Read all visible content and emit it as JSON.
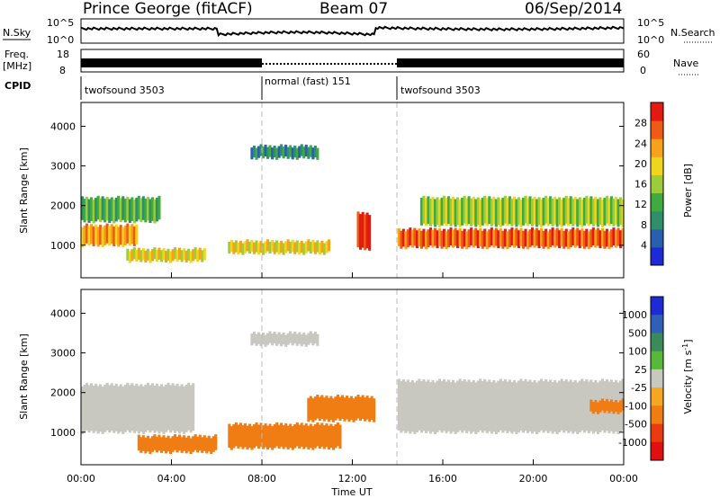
{
  "header": {
    "station": "Prince George (fitACF)",
    "beam": "Beam 07",
    "date": "06/Sep/2014"
  },
  "colors": {
    "power_scale": [
      "#1d2bd6",
      "#2a5fb0",
      "#2f8f6b",
      "#3faa3f",
      "#9ccc3a",
      "#f0d51e",
      "#f7a21b",
      "#ef5a14",
      "#e41a12"
    ],
    "velocity_scale": [
      "#1d2bd6",
      "#2f5fb6",
      "#3a8a5a",
      "#58b83a",
      "#c8c8c0",
      "#f5a623",
      "#f07d14",
      "#e83c10",
      "#e01010"
    ]
  },
  "top_panels": {
    "nsky_label": "N.Sky",
    "nsearch_label": "N.Search",
    "nsky_ticks": [
      "10^5",
      "10^0"
    ],
    "nsearch_ticks": [
      "10^5",
      "10^0"
    ],
    "freq_label": "Freq.",
    "freq_unit": "[MHz]",
    "freq_ticks": [
      "18",
      "8"
    ],
    "nave_label": "Nave",
    "nave_ticks": [
      "60",
      "0"
    ],
    "cpid_label": "CPID",
    "cpid_segments": [
      {
        "label": "twofsound 3503",
        "start_h": 0,
        "end_h": 8
      },
      {
        "label": "normal (fast) 151",
        "start_h": 8,
        "end_h": 14
      },
      {
        "label": "twofsound 3503",
        "start_h": 14,
        "end_h": 24
      }
    ]
  },
  "chart_data": [
    {
      "type": "heatmap",
      "title": "",
      "xlabel": "",
      "ylabel": "Slant Range [km]",
      "xlim": [
        0,
        24
      ],
      "ylim": [
        180,
        4600
      ],
      "yticks": [
        1000,
        2000,
        3000,
        4000
      ],
      "colorbar": {
        "label": "Power [dB]",
        "range": [
          0,
          32
        ],
        "ticks": [
          4,
          8,
          12,
          16,
          20,
          24,
          28
        ]
      },
      "echo_bands": [
        {
          "start_h": 0.0,
          "end_h": 2.5,
          "range_km": [
            1000,
            1500
          ],
          "power_db": 24
        },
        {
          "start_h": 0.0,
          "end_h": 3.5,
          "range_km": [
            1600,
            2200
          ],
          "power_db": 12
        },
        {
          "start_h": 2.0,
          "end_h": 5.5,
          "range_km": [
            600,
            900
          ],
          "power_db": 20
        },
        {
          "start_h": 6.5,
          "end_h": 11.0,
          "range_km": [
            800,
            1100
          ],
          "power_db": 18
        },
        {
          "start_h": 7.5,
          "end_h": 10.5,
          "range_km": [
            3200,
            3500
          ],
          "power_db": 6
        },
        {
          "start_h": 12.2,
          "end_h": 12.8,
          "range_km": [
            900,
            1800
          ],
          "power_db": 30
        },
        {
          "start_h": 14.0,
          "end_h": 24.0,
          "range_km": [
            950,
            1400
          ],
          "power_db": 26
        },
        {
          "start_h": 15.0,
          "end_h": 24.0,
          "range_km": [
            1500,
            2200
          ],
          "power_db": 14
        }
      ]
    },
    {
      "type": "heatmap",
      "title": "",
      "xlabel": "Time UT",
      "ylabel": "Slant Range [km]",
      "xlim": [
        0,
        24
      ],
      "ylim": [
        180,
        4600
      ],
      "yticks": [
        1000,
        2000,
        3000,
        4000
      ],
      "xticks": [
        "00:00",
        "04:00",
        "08:00",
        "12:00",
        "16:00",
        "20:00",
        "00:00"
      ],
      "colorbar": {
        "label": "Velocity [m s^-1]",
        "ticks": [
          "1000",
          "500",
          "100",
          "25",
          "-25",
          "-100",
          "-500",
          "-1000"
        ]
      },
      "echo_bands": [
        {
          "start_h": 0.0,
          "end_h": 5.0,
          "range_km": [
            1000,
            2200
          ],
          "velocity_ms": 0
        },
        {
          "start_h": 2.5,
          "end_h": 6.0,
          "range_km": [
            500,
            900
          ],
          "velocity_ms": -150
        },
        {
          "start_h": 6.5,
          "end_h": 11.5,
          "range_km": [
            600,
            1200
          ],
          "velocity_ms": -200
        },
        {
          "start_h": 7.5,
          "end_h": 10.5,
          "range_km": [
            3200,
            3500
          ],
          "velocity_ms": 0
        },
        {
          "start_h": 10.0,
          "end_h": 13.0,
          "range_km": [
            1300,
            1900
          ],
          "velocity_ms": -300
        },
        {
          "start_h": 14.0,
          "end_h": 24.0,
          "range_km": [
            1000,
            2300
          ],
          "velocity_ms": 0
        },
        {
          "start_h": 22.5,
          "end_h": 24.0,
          "range_km": [
            1500,
            1800
          ],
          "velocity_ms": -150
        }
      ]
    }
  ]
}
